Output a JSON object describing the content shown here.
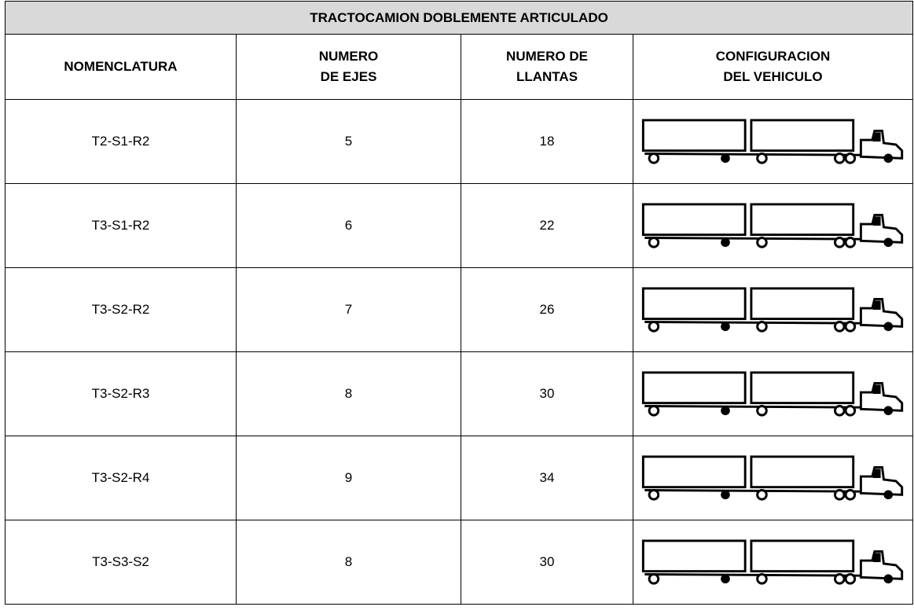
{
  "header": {
    "title": "TRACTOCAMION DOBLEMENTE ARTICULADO"
  },
  "table": {
    "columns": [
      [
        "NOMENCLATURA"
      ],
      [
        "NUMERO",
        "DE EJES"
      ],
      [
        "NUMERO DE",
        "LLANTAS"
      ],
      [
        "CONFIGURACION",
        "DEL VEHICULO"
      ]
    ],
    "rows": [
      [
        "T2-S1-R2",
        "5",
        "18"
      ],
      [
        "T3-S1-R2",
        "6",
        "22"
      ],
      [
        "T3-S2-R2",
        "7",
        "26"
      ],
      [
        "T3-S2-R3",
        "8",
        "30"
      ],
      [
        "T3-S2-R4",
        "9",
        "34"
      ],
      [
        "T3-S3-S2",
        "8",
        "30"
      ]
    ]
  }
}
